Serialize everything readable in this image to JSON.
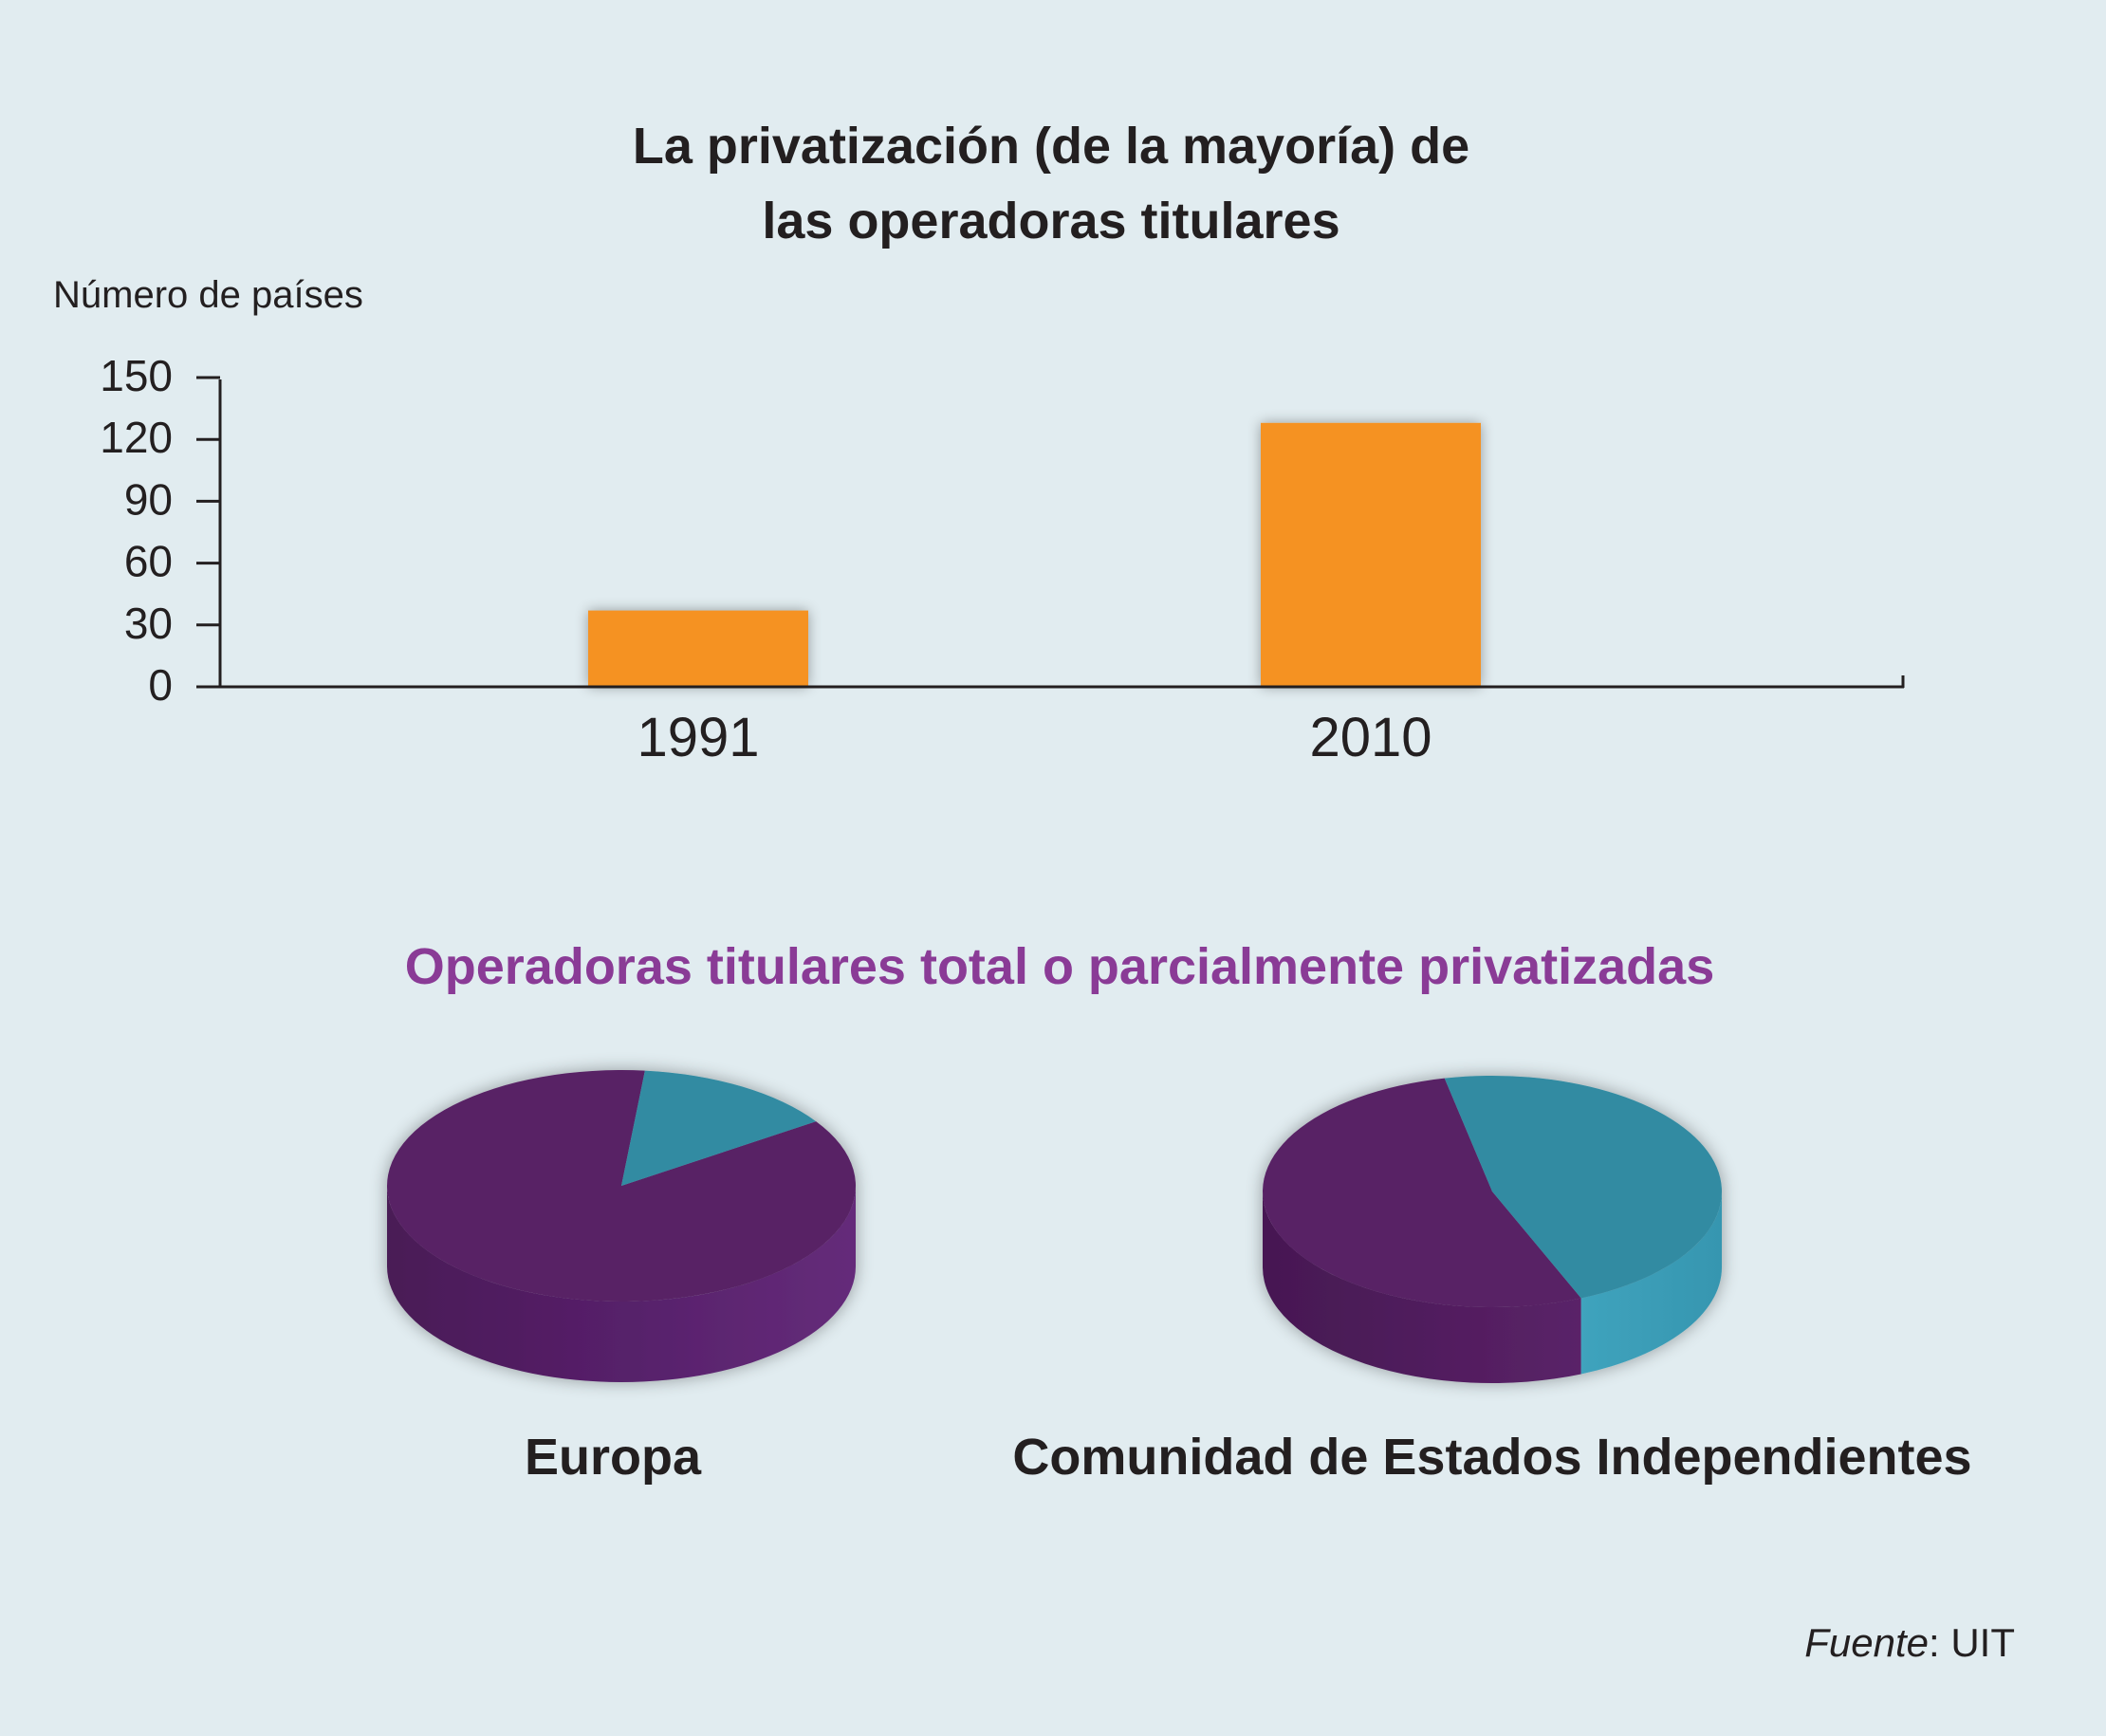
{
  "colors": {
    "background": "#e1ecf0",
    "bar": "#f59222",
    "purple": "#582165",
    "purple_side": "#4a1a56",
    "teal": "#338ba2",
    "teal_side": "#3d9db6",
    "subtitle": "#8a3b96",
    "text": "#231f20"
  },
  "chart_data": [
    {
      "type": "bar",
      "title": "La privatización (de la mayoría) de las operadoras titulares",
      "title_lines": [
        "La privatización (de la mayoría) de",
        "las operadoras titulares"
      ],
      "ylabel": "Número de países",
      "xlabel": "",
      "categories": [
        "1991",
        "2010"
      ],
      "values": [
        37,
        128
      ],
      "ylim": [
        0,
        150
      ],
      "yticks": [
        0,
        30,
        60,
        90,
        120,
        150
      ],
      "grid": false
    },
    {
      "type": "pie",
      "title": "Operadoras titulares total o parcialmente privatizadas",
      "pies": [
        {
          "label": "Europa",
          "slices": [
            {
              "share": 0.86,
              "color": "#582165"
            },
            {
              "share": 0.14,
              "color": "#338ba2"
            }
          ]
        },
        {
          "label": "Comunidad de Estados Independientes",
          "slices": [
            {
              "share": 0.53,
              "color": "#582165"
            },
            {
              "share": 0.47,
              "color": "#338ba2"
            }
          ]
        }
      ]
    }
  ],
  "source": {
    "label": "Fuente",
    "separator": ": ",
    "value": "UIT"
  }
}
